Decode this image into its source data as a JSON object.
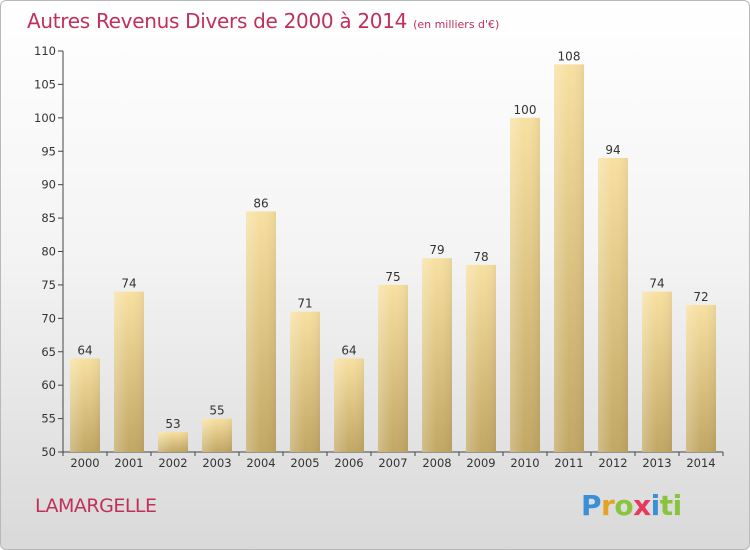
{
  "header": {
    "title": "Autres Revenus Divers de 2000 à 2014",
    "subtitle": "(en milliers d'€)"
  },
  "footer": {
    "place": "LAMARGELLE",
    "logo": "Proxiti"
  },
  "colors": {
    "bar_light": "#f6de9a",
    "bar_dark": "#c2a764",
    "title": "#c0305a"
  },
  "chart_data": {
    "type": "bar",
    "categories": [
      "2000",
      "2001",
      "2002",
      "2003",
      "2004",
      "2005",
      "2006",
      "2007",
      "2008",
      "2009",
      "2010",
      "2011",
      "2012",
      "2013",
      "2014"
    ],
    "values": [
      64,
      74,
      53,
      55,
      86,
      71,
      64,
      75,
      79,
      78,
      100,
      108,
      94,
      74,
      72
    ],
    "title": "Autres Revenus Divers de 2000 à 2014",
    "subtitle": "(en milliers d'€)",
    "ylim": [
      50,
      110
    ],
    "yticks": [
      50,
      55,
      60,
      65,
      70,
      75,
      80,
      85,
      90,
      95,
      100,
      105,
      110
    ],
    "grid": false,
    "data_labels": true
  }
}
